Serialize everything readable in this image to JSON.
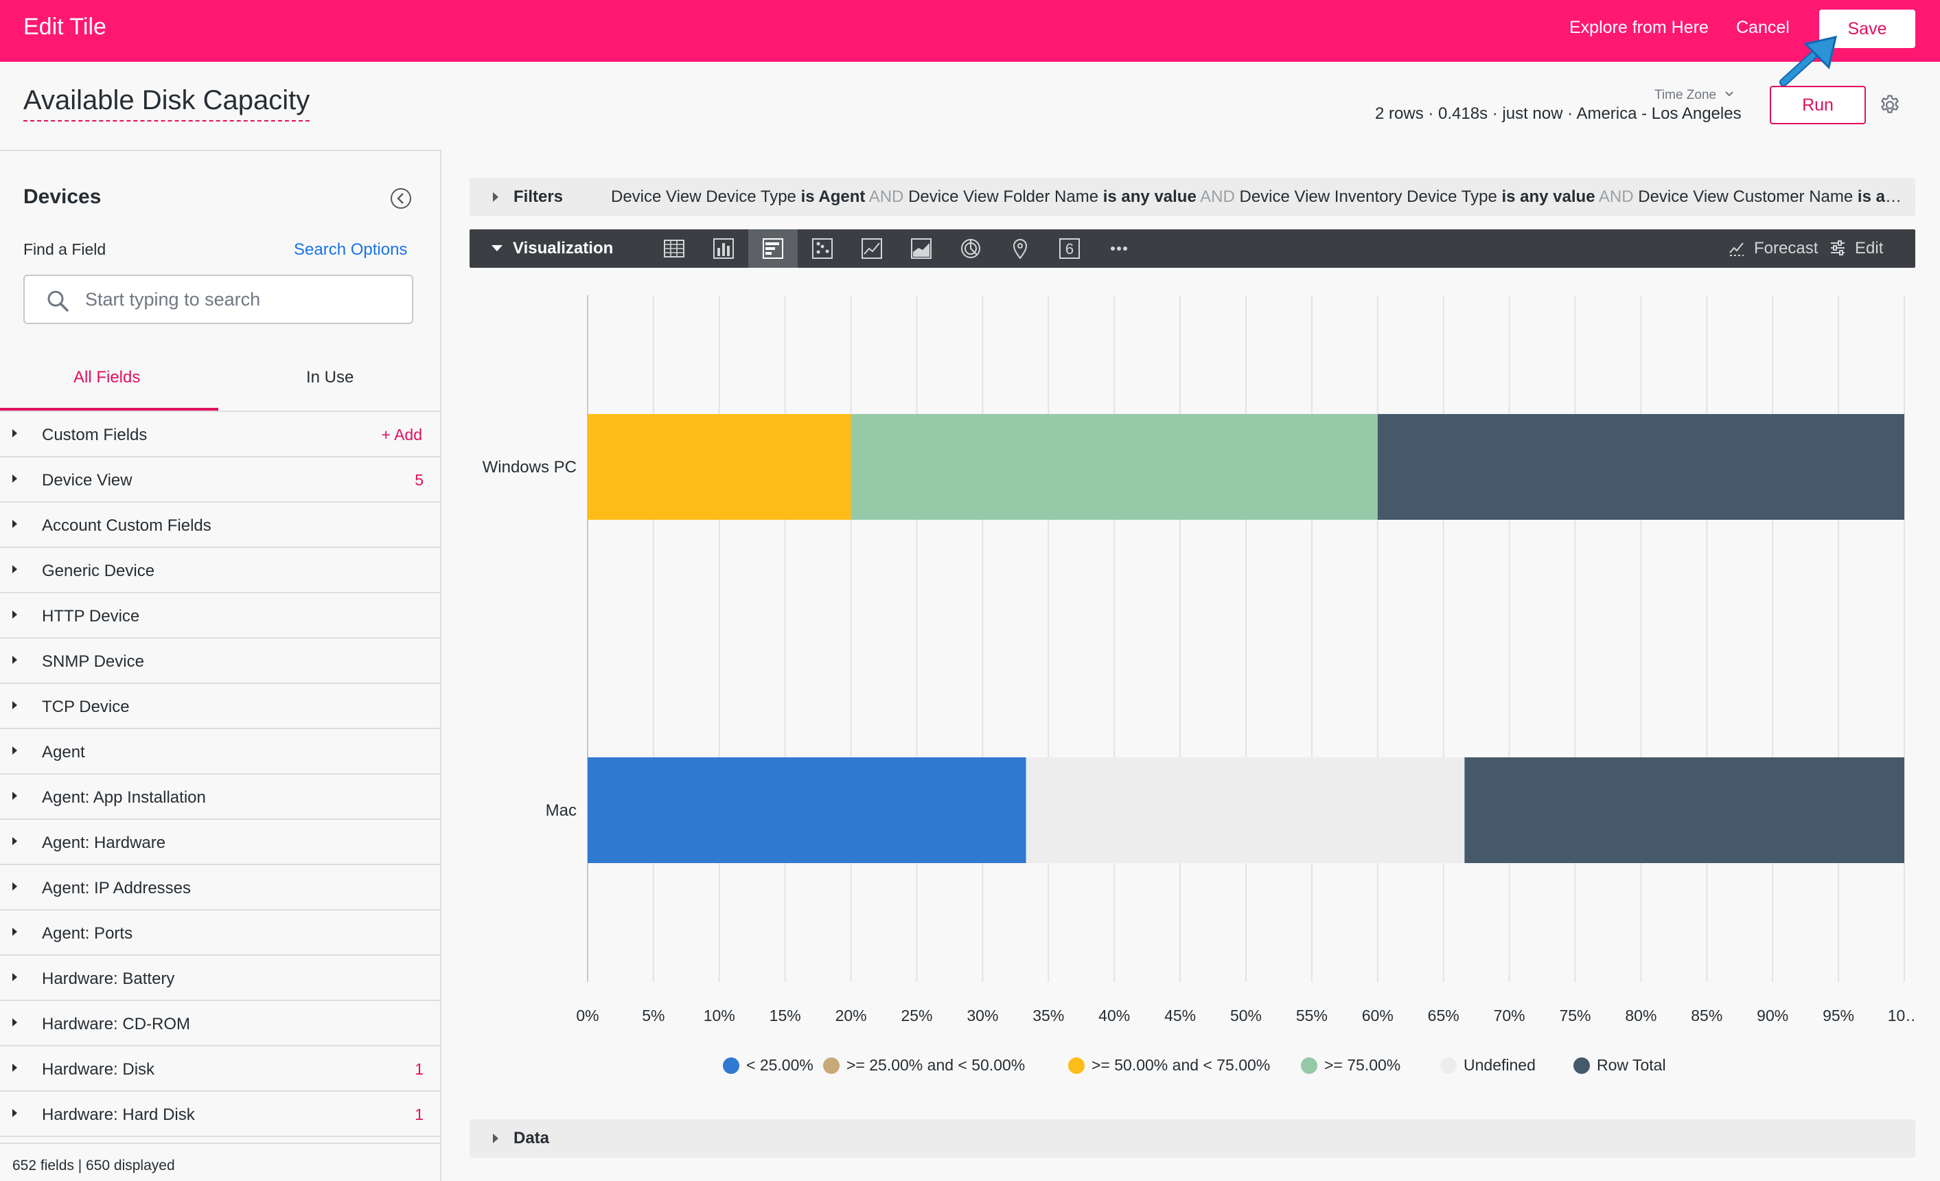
{
  "header": {
    "title": "Edit Tile",
    "explore_label": "Explore from Here",
    "cancel_label": "Cancel",
    "save_label": "Save",
    "background_color": "#ff1872"
  },
  "tile": {
    "title": "Available Disk Capacity",
    "timezone_label": "Time Zone",
    "run_info": "2 rows · 0.418s · just now · America - Los Angeles",
    "run_label": "Run"
  },
  "sidebar": {
    "heading": "Devices",
    "find_label": "Find a Field",
    "search_options_label": "Search Options",
    "search_placeholder": "Start typing to search",
    "tabs": [
      {
        "label": "All Fields",
        "active": true
      },
      {
        "label": "In Use",
        "active": false
      }
    ],
    "fields": [
      {
        "label": "Custom Fields",
        "add_label": "+ Add"
      },
      {
        "label": "Device View",
        "count": "5"
      },
      {
        "label": "Account Custom Fields"
      },
      {
        "label": "Generic Device"
      },
      {
        "label": "HTTP Device"
      },
      {
        "label": "SNMP Device"
      },
      {
        "label": "TCP Device"
      },
      {
        "label": "Agent"
      },
      {
        "label": "Agent: App Installation"
      },
      {
        "label": "Agent: Hardware"
      },
      {
        "label": "Agent: IP Addresses"
      },
      {
        "label": "Agent: Ports"
      },
      {
        "label": "Hardware: Battery"
      },
      {
        "label": "Hardware: CD-ROM"
      },
      {
        "label": "Hardware: Disk",
        "count": "1"
      },
      {
        "label": "Hardware: Hard Disk",
        "count": "1"
      }
    ],
    "footer": "652 fields | 650 displayed"
  },
  "filters": {
    "label": "Filters",
    "summary_parts": [
      {
        "text": "Device View Device Type ",
        "style": "normal"
      },
      {
        "text": "is Agent",
        "style": "strong"
      },
      {
        "text": " AND ",
        "style": "muted"
      },
      {
        "text": "Device View Folder Name ",
        "style": "normal"
      },
      {
        "text": "is any value",
        "style": "strong"
      },
      {
        "text": " AND ",
        "style": "muted"
      },
      {
        "text": "Device View Inventory Device Type ",
        "style": "normal"
      },
      {
        "text": "is any value",
        "style": "strong"
      },
      {
        "text": " AND ",
        "style": "muted"
      },
      {
        "text": "Device View Customer Name ",
        "style": "normal"
      },
      {
        "text": "is any value",
        "style": "strong"
      }
    ]
  },
  "visualization": {
    "label": "Visualization",
    "types": [
      "table-icon",
      "column-chart-icon",
      "bar-chart-icon",
      "scatter-chart-icon",
      "line-chart-icon",
      "area-chart-icon",
      "pie-chart-icon",
      "map-pin-icon",
      "single-value-icon",
      "more-icon"
    ],
    "active_type": "bar-chart-icon",
    "single_value_glyph": "6",
    "more_glyph": "•••",
    "forecast_label": "Forecast",
    "edit_label": "Edit"
  },
  "data_panel": {
    "label": "Data"
  },
  "chart_data": {
    "type": "bar",
    "orientation": "horizontal",
    "stacked": "percent",
    "categories": [
      "Windows PC",
      "Mac"
    ],
    "series": [
      {
        "name": "< 25.00%",
        "color": "#2f79d0",
        "values": [
          0,
          33.3
        ]
      },
      {
        "name": ">= 25.00% and < 50.00%",
        "color": "#c8a97a",
        "values": [
          0,
          0
        ]
      },
      {
        "name": ">= 50.00% and < 75.00%",
        "color": "#fdbc17",
        "values": [
          20,
          0
        ]
      },
      {
        "name": ">= 75.00%",
        "color": "#95c9a7",
        "values": [
          40,
          0
        ]
      },
      {
        "name": "Undefined",
        "color": "#ededed",
        "values": [
          0,
          33.3
        ]
      },
      {
        "name": "Row Total",
        "color": "#46596a",
        "values": [
          40,
          33.4
        ]
      }
    ],
    "x_ticks": [
      "0%",
      "5%",
      "10%",
      "15%",
      "20%",
      "25%",
      "30%",
      "35%",
      "40%",
      "45%",
      "50%",
      "55%",
      "60%",
      "65%",
      "70%",
      "75%",
      "80%",
      "85%",
      "90%",
      "95%",
      "10…"
    ],
    "xlim": [
      0,
      100
    ],
    "grid": true,
    "legend_position": "bottom"
  }
}
